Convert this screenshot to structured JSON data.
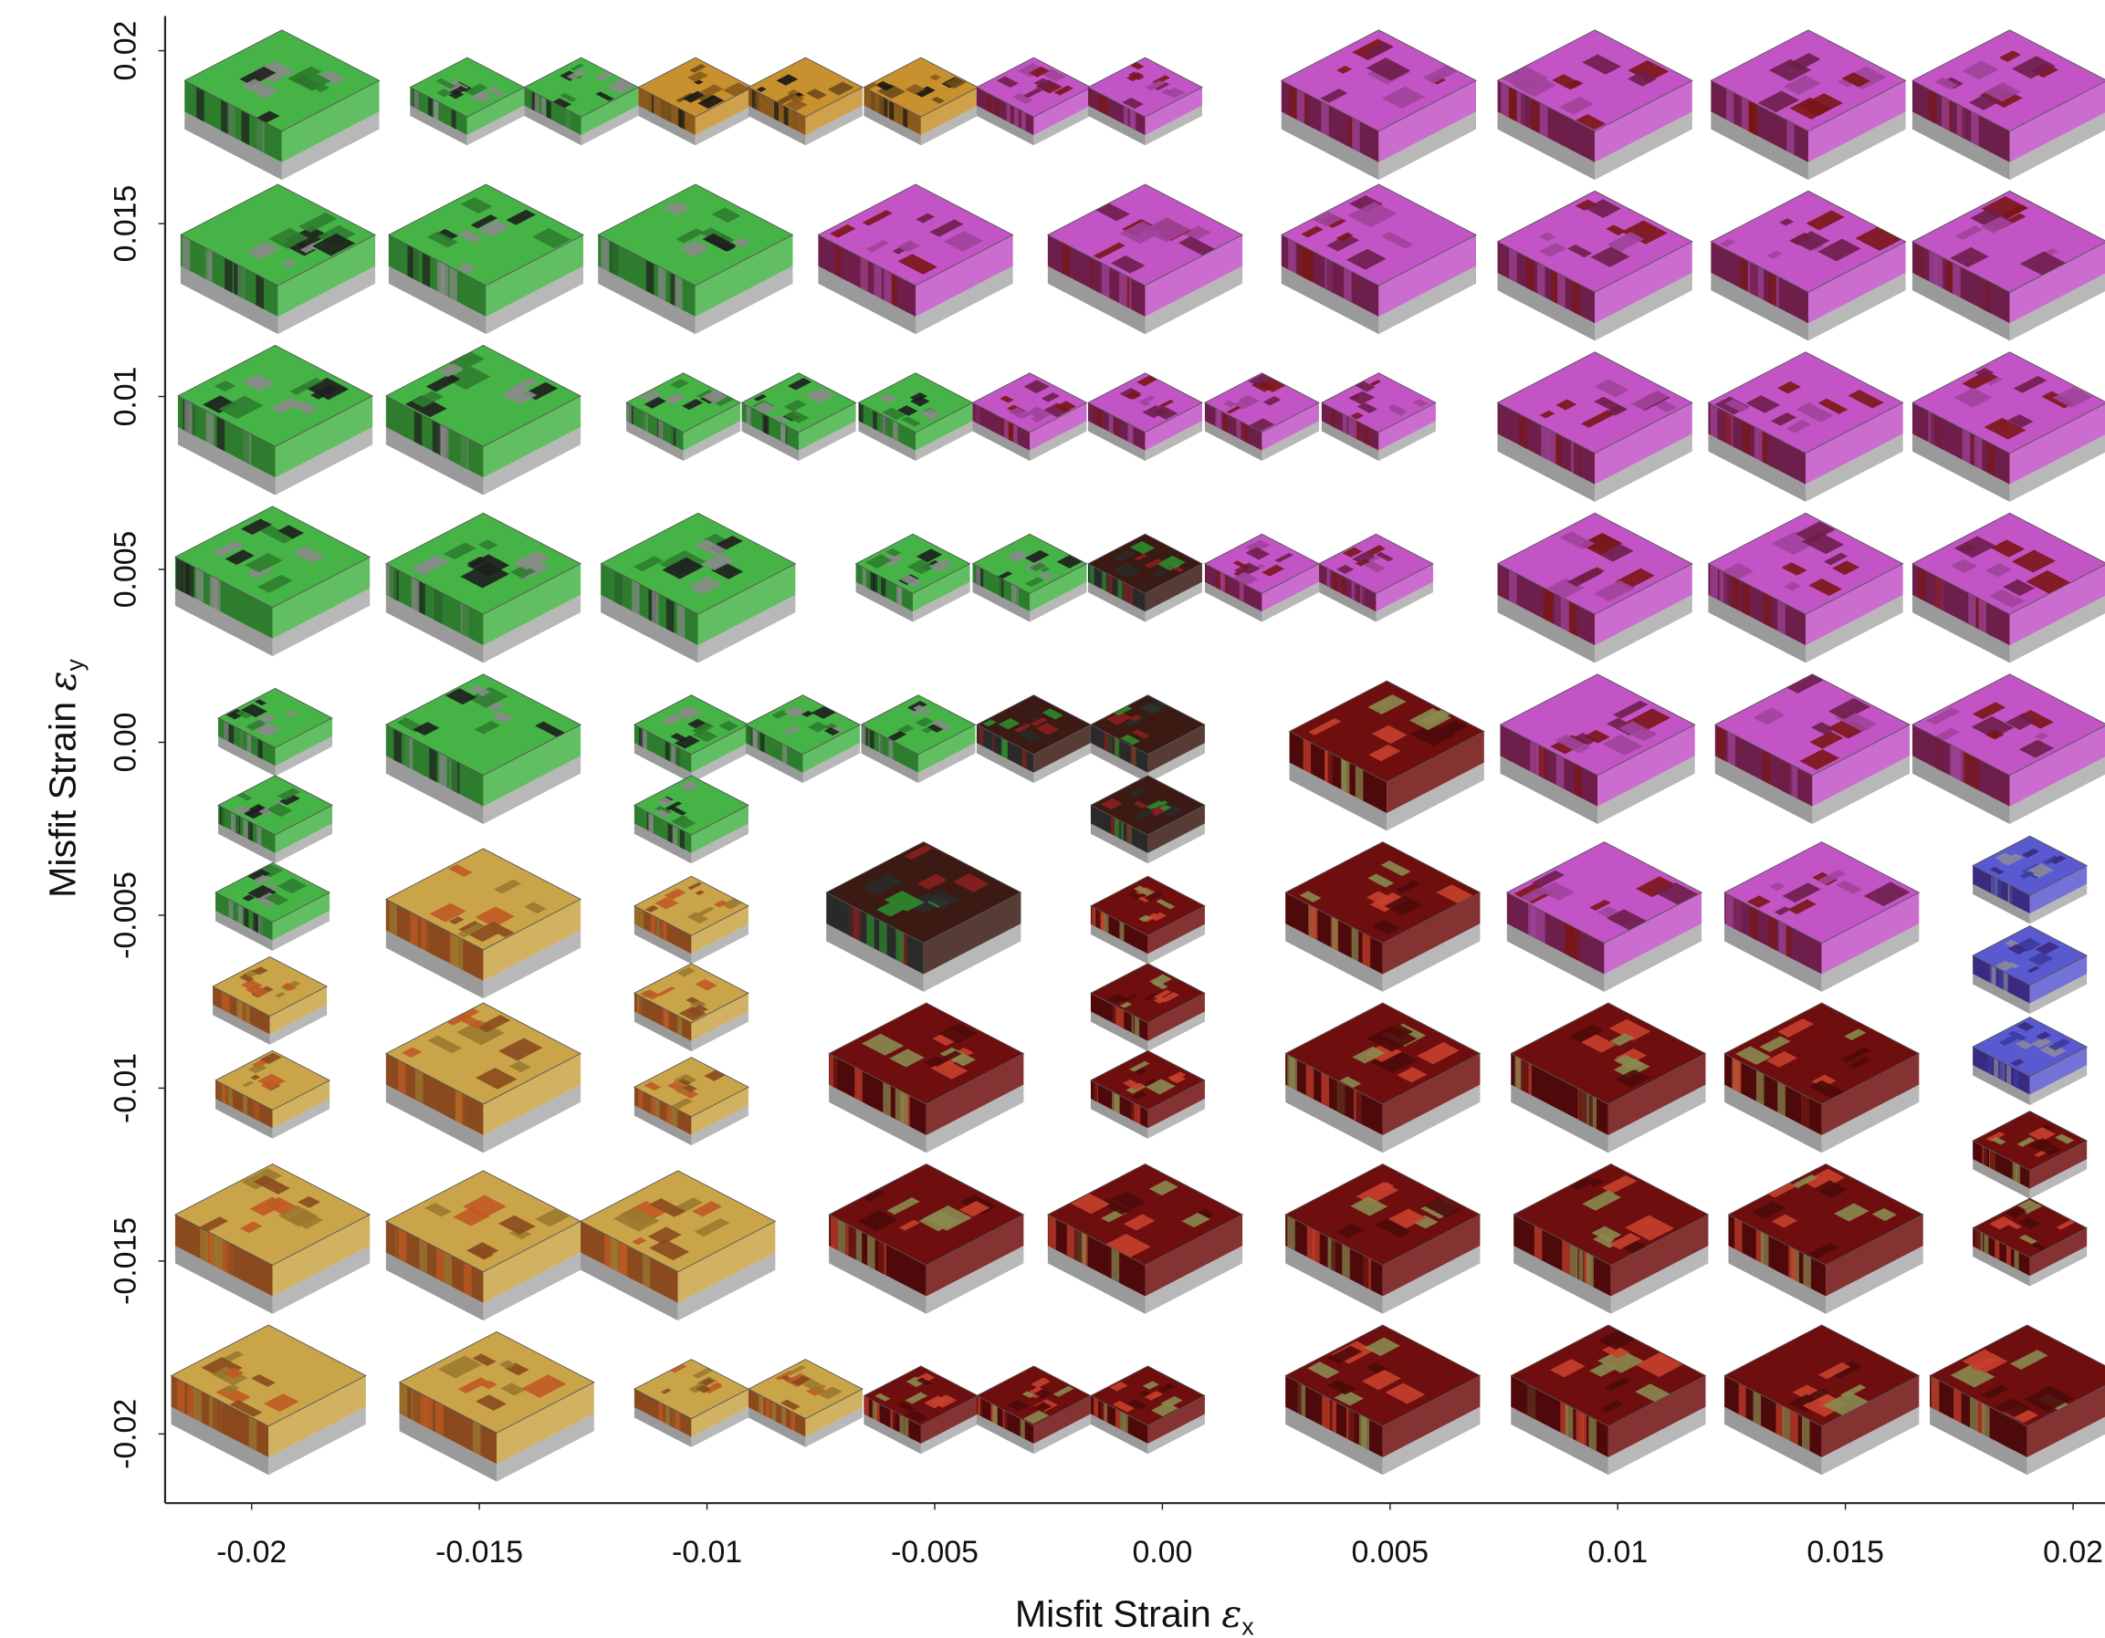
{
  "chart_data": {
    "type": "phase-map",
    "xlabel": "Misfit Strain",
    "xlabel_symbol": "ε",
    "xlabel_subscript": "x",
    "ylabel": "Misfit Strain",
    "ylabel_symbol": "ε",
    "ylabel_subscript": "y",
    "xlim": [
      -0.0219,
      0.0207
    ],
    "xticks": [
      -0.02,
      -0.015,
      -0.01,
      -0.005,
      {
        "value": 0,
        "label": "0.00"
      },
      0.005,
      0.01,
      0.015,
      0.02
    ],
    "ylim": [
      -0.022,
      0.021
    ],
    "yticks": [
      0.02,
      0.015,
      0.01,
      0.005,
      {
        "value": 0,
        "label": "0.00"
      },
      -0.005,
      -0.01,
      -0.015,
      -0.02
    ]
  }
}
